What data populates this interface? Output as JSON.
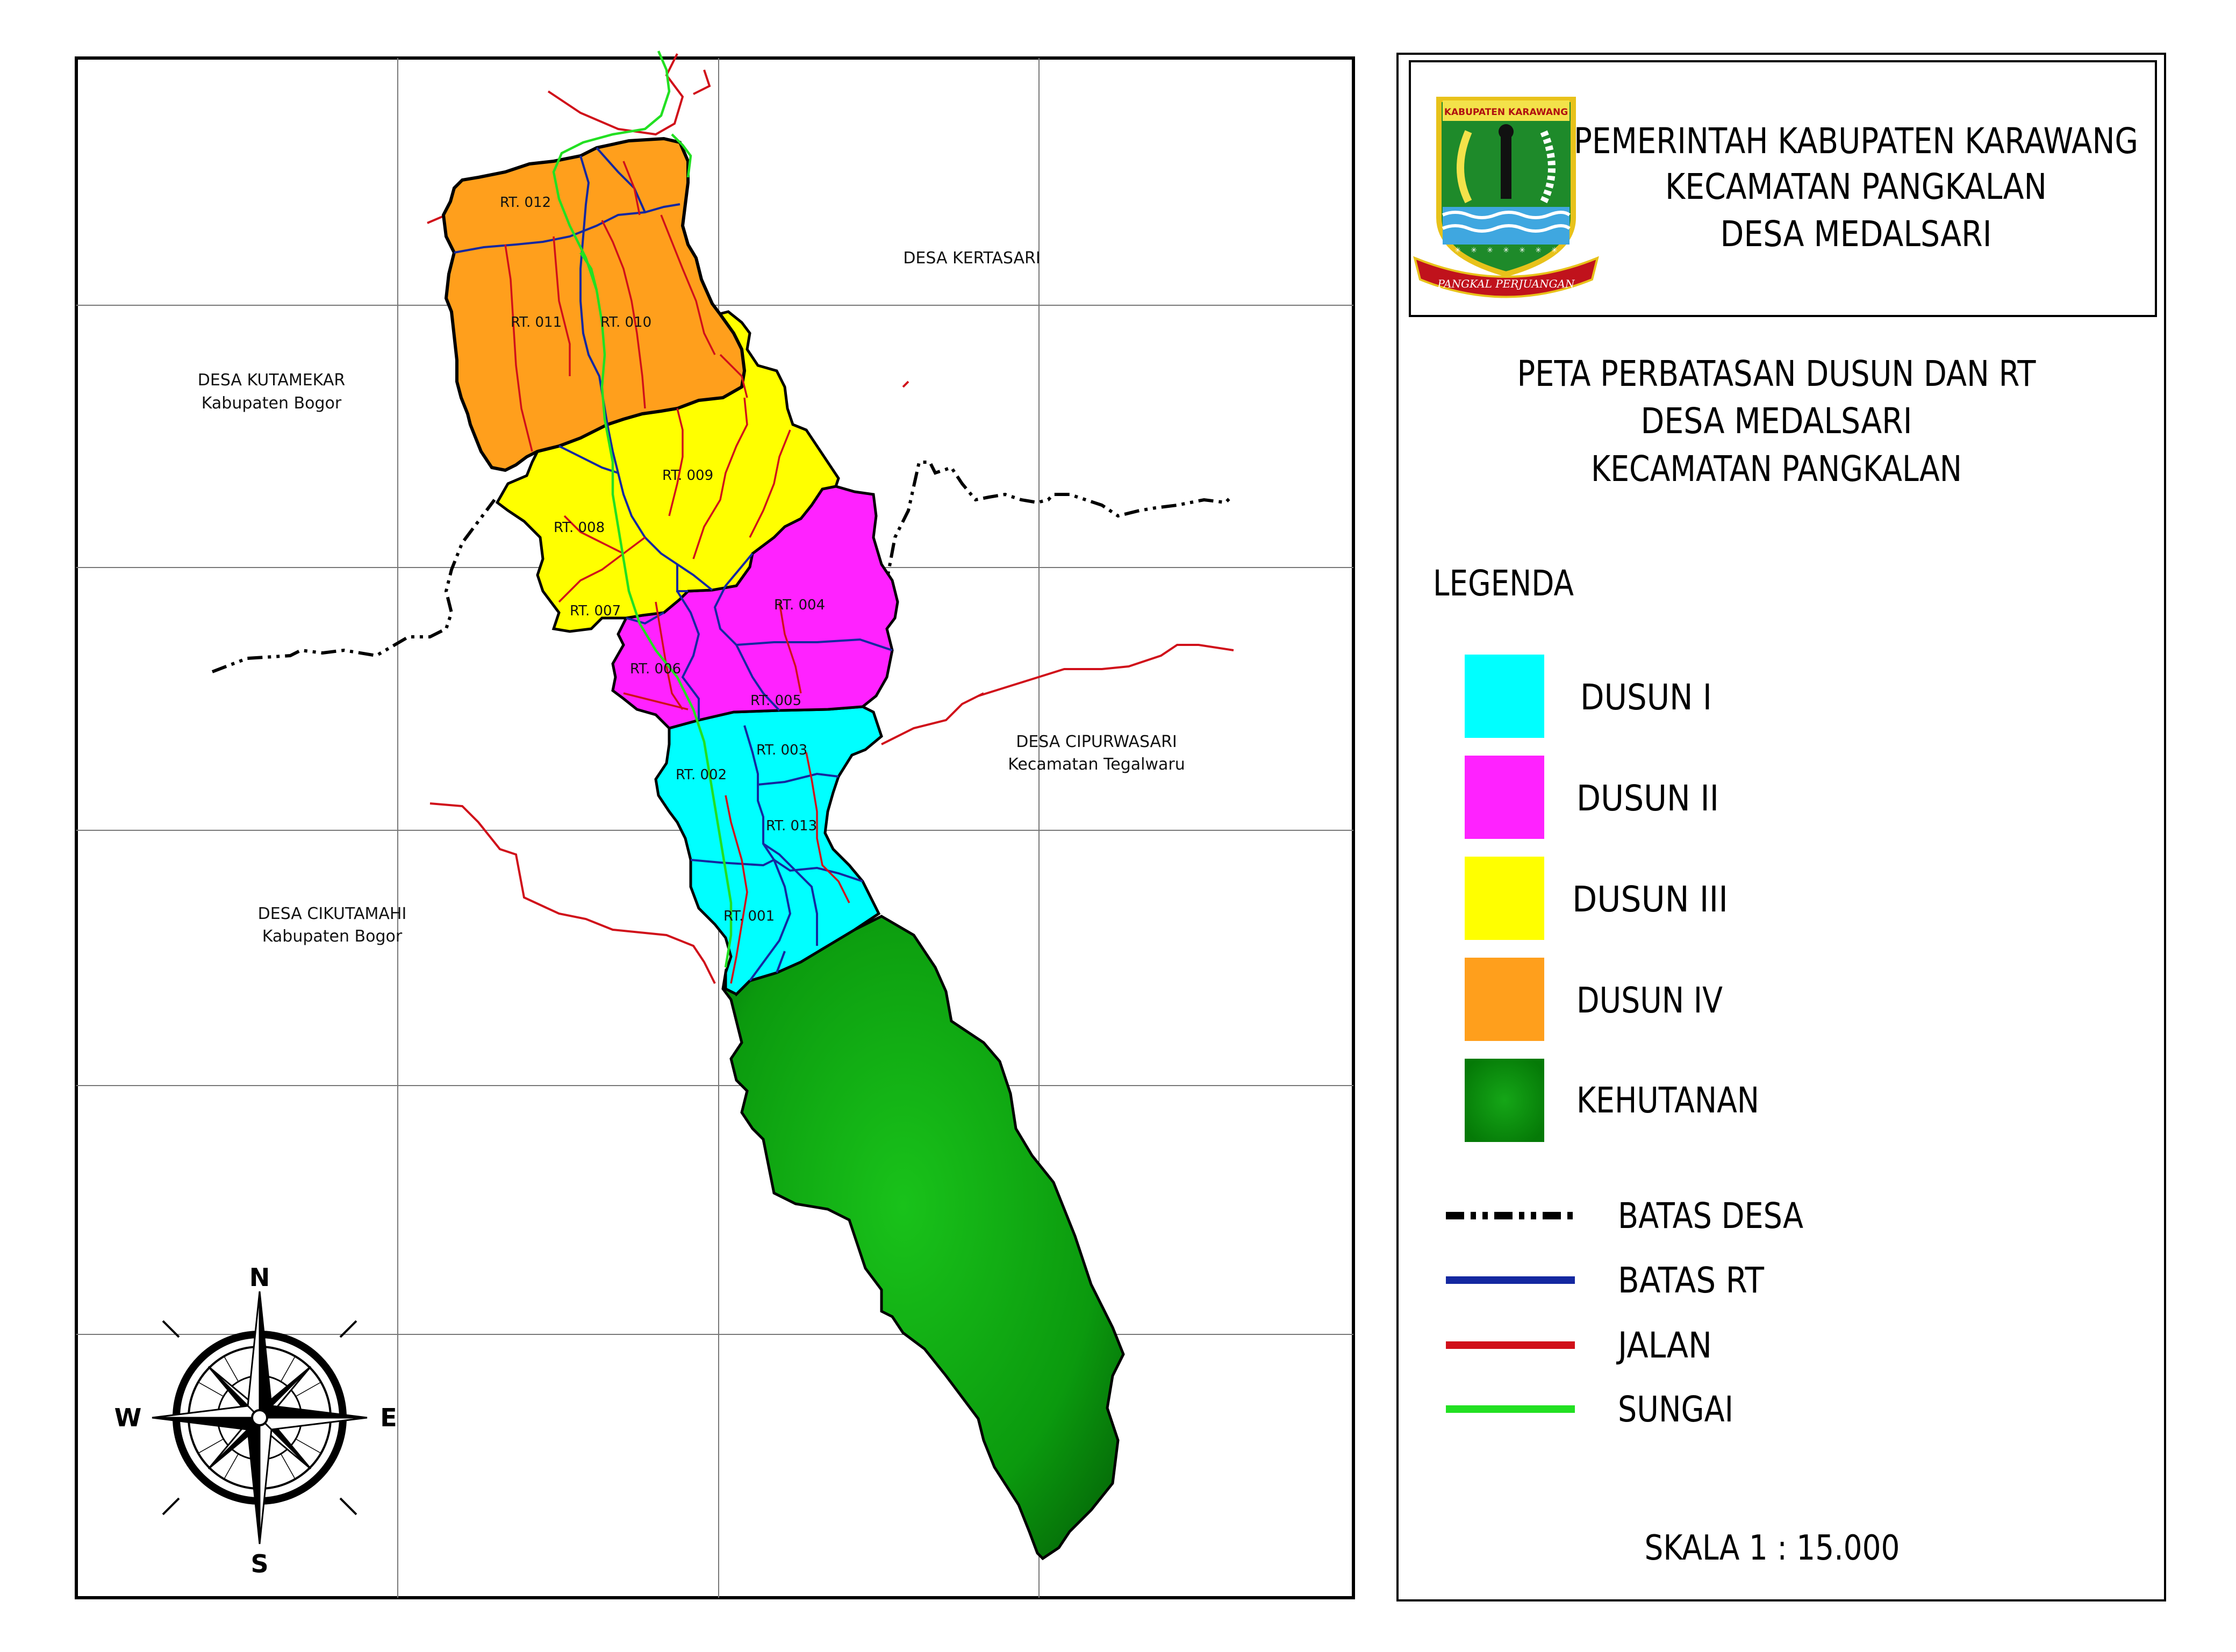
{
  "header": {
    "line1": "PEMERINTAH KABUPATEN KARAWANG",
    "line2": "KECAMATAN PANGKALAN",
    "line3": "DESA MEDALSARI"
  },
  "emblem": {
    "top_text": "KABUPATEN KARAWANG",
    "bottom_text": "PANGKAL PERJUANGAN"
  },
  "map_title": {
    "line1": "PETA PERBATASAN DUSUN DAN RT",
    "line2": "DESA MEDALSARI",
    "line3": "KECAMATAN PANGKALAN"
  },
  "legend": {
    "heading": "LEGENDA",
    "areas": [
      {
        "label": "DUSUN I",
        "color": "#00FFFF"
      },
      {
        "label": "DUSUN II",
        "color": "#FF22FF"
      },
      {
        "label": "DUSUN III",
        "color": "#FFFF00"
      },
      {
        "label": "DUSUN IV",
        "color": "#FF9F1C"
      },
      {
        "label": "KEHUTANAN",
        "color": "#0A8F0A"
      }
    ],
    "lines": [
      {
        "label": "BATAS DESA",
        "color": "#000000",
        "style": "dash-dot"
      },
      {
        "label": "BATAS RT",
        "color": "#1428A0",
        "style": "solid"
      },
      {
        "label": "JALAN",
        "color": "#D0101A",
        "style": "solid"
      },
      {
        "label": "SUNGAI",
        "color": "#22E022",
        "style": "solid"
      }
    ]
  },
  "scale": "SKALA 1 : 15.000",
  "neighbors": {
    "kertasari": "DESA KERTASARI",
    "kutamekar": "DESA KUTAMEKAR",
    "kutamekar_sub": "Kabupaten Bogor",
    "cipurwasari": "DESA CIPURWASARI",
    "cipurwasari_sub": "Kecamatan Tegalwaru",
    "cikutamahi": "DESA CIKUTAMAHI",
    "cikutamahi_sub": "Kabupaten Bogor"
  },
  "rt_labels": {
    "rt012": "RT. 012",
    "rt011": "RT. 011",
    "rt010": "RT. 010",
    "rt009": "RT. 009",
    "rt008": "RT. 008",
    "rt007": "RT. 007",
    "rt006": "RT. 006",
    "rt005": "RT. 005",
    "rt004": "RT. 004",
    "rt003": "RT. 003",
    "rt002": "RT. 002",
    "rt013": "RT. 013",
    "rt001": "RT. 001"
  },
  "compass": {
    "n": "N",
    "s": "S",
    "e": "E",
    "w": "W"
  }
}
